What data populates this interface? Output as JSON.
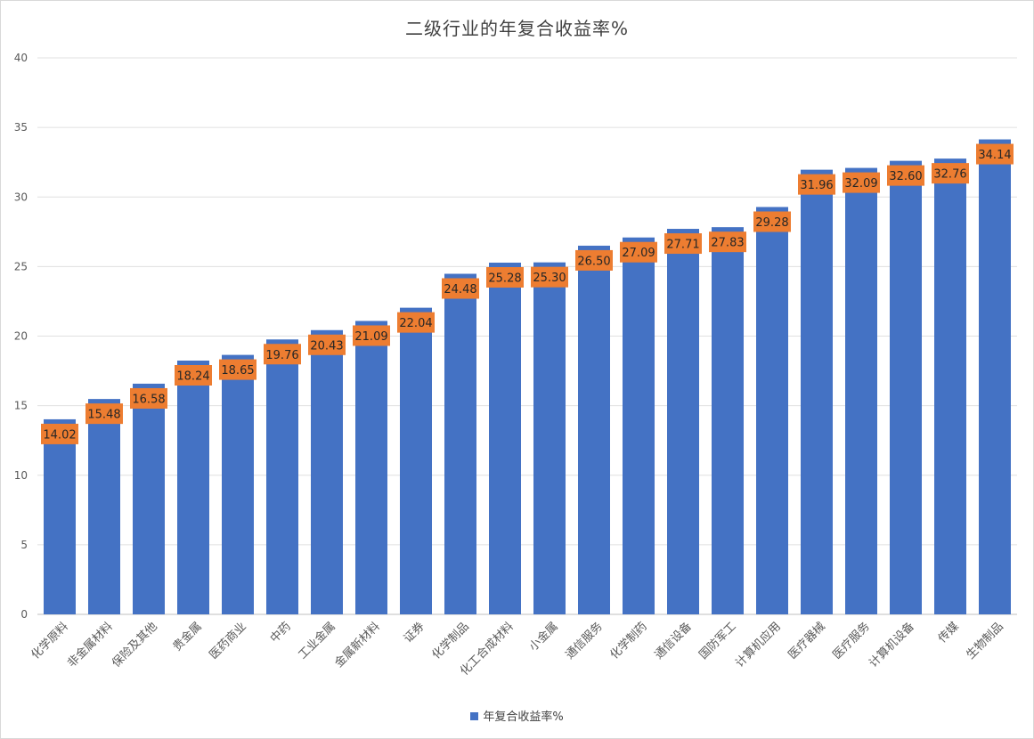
{
  "chart_data": {
    "type": "bar",
    "title": "二级行业的年复合收益率%",
    "categories": [
      "化学原料",
      "非金属材料",
      "保险及其他",
      "贵金属",
      "医药商业",
      "中药",
      "工业金属",
      "金属新材料",
      "证券",
      "化学制品",
      "化工合成材料",
      "小金属",
      "通信服务",
      "化学制药",
      "通信设备",
      "国防军工",
      "计算机应用",
      "医疗器械",
      "医疗服务",
      "计算机设备",
      "传媒",
      "生物制品"
    ],
    "series": [
      {
        "name": "年复合收益率%",
        "values": [
          14.02,
          15.48,
          16.58,
          18.24,
          18.65,
          19.76,
          20.43,
          21.09,
          22.04,
          24.48,
          25.28,
          25.3,
          26.5,
          27.09,
          27.71,
          27.83,
          29.28,
          31.96,
          32.09,
          32.6,
          32.76,
          34.14
        ]
      }
    ],
    "data_labels": [
      "14.02",
      "15.48",
      "16.58",
      "18.24",
      "18.65",
      "19.76",
      "20.43",
      "21.09",
      "22.04",
      "24.48",
      "25.28",
      "25.30",
      "26.50",
      "27.09",
      "27.71",
      "27.83",
      "29.28",
      "31.96",
      "32.09",
      "32.60",
      "32.76",
      "34.14"
    ],
    "ylim": [
      0,
      40
    ],
    "yticks": [
      "0",
      "5",
      "10",
      "15",
      "20",
      "25",
      "30",
      "35",
      "40"
    ],
    "grid": true,
    "legend_position": "bottom",
    "colors": {
      "bar": "#4472c4",
      "label_bg": "#ed7d31",
      "grid": "#e0e0e0",
      "axis": "#bfbfbf",
      "text": "#595959"
    }
  },
  "legend": {
    "label": "年复合收益率%"
  }
}
